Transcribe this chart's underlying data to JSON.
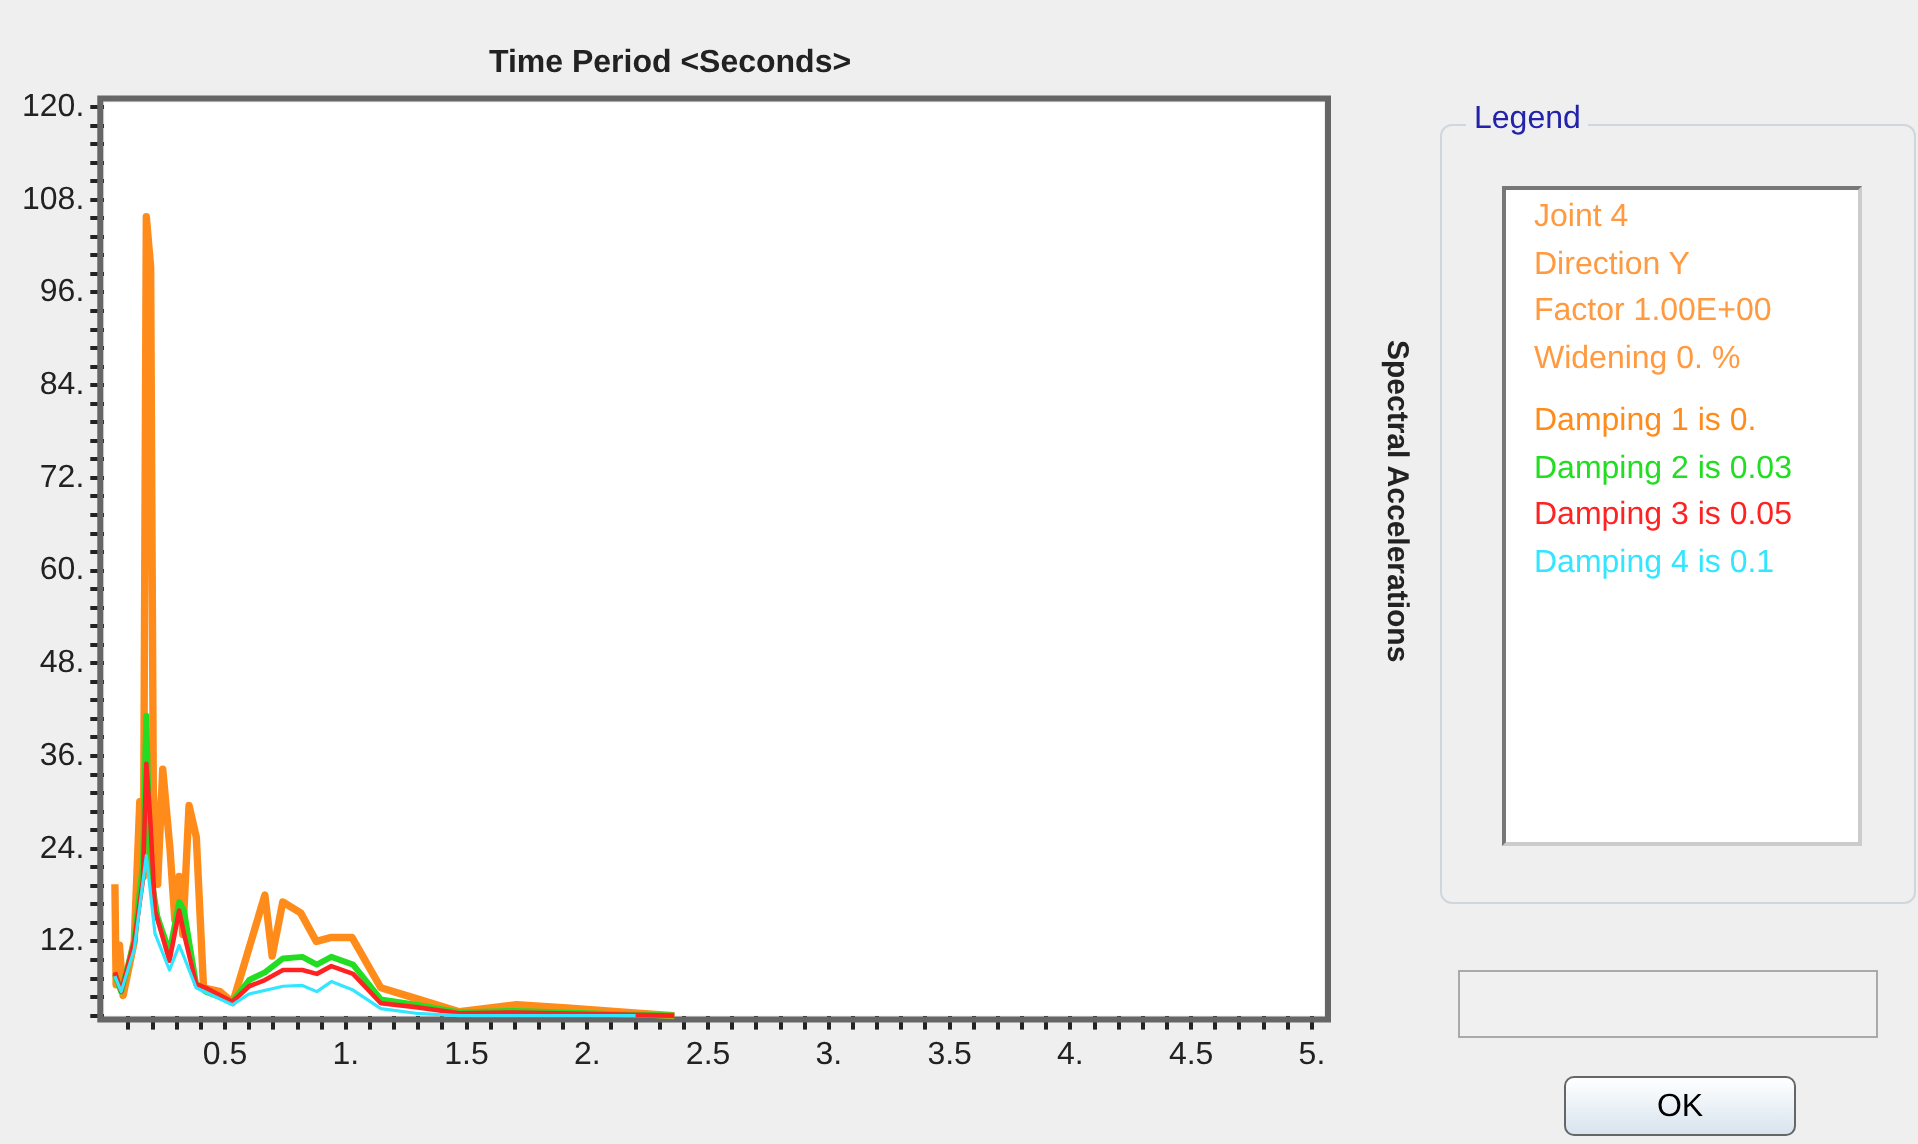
{
  "chart_data": {
    "type": "line",
    "title": "Time Period <Seconds>",
    "ylabel": "Spectral Accelerations",
    "legend_title": "Legend",
    "legend": "right",
    "grid": false,
    "marker": "none",
    "line_style": "solid",
    "annotations": [
      "Joint 4",
      "Direction Y",
      "Factor 1.00E+00",
      "Widening 0. %",
      "OK"
    ],
    "xlim": [
      0,
      5.05
    ],
    "ylim": [
      2.4,
      120.6
    ],
    "xticks": [
      {
        "value": 0.1,
        "label": null
      },
      {
        "value": 0.2,
        "label": null
      },
      {
        "value": 0.3,
        "label": null
      },
      {
        "value": 0.4,
        "label": null
      },
      {
        "value": 0.5,
        "label": "0.5"
      },
      {
        "value": 0.6,
        "label": null
      },
      {
        "value": 0.7,
        "label": null
      },
      {
        "value": 0.8,
        "label": null
      },
      {
        "value": 0.9,
        "label": null
      },
      {
        "value": 1,
        "label": "1."
      },
      {
        "value": 1.1,
        "label": null
      },
      {
        "value": 1.2,
        "label": null
      },
      {
        "value": 1.3,
        "label": null
      },
      {
        "value": 1.4,
        "label": null
      },
      {
        "value": 1.5,
        "label": "1.5"
      },
      {
        "value": 1.6,
        "label": null
      },
      {
        "value": 1.7,
        "label": null
      },
      {
        "value": 1.8,
        "label": null
      },
      {
        "value": 1.9,
        "label": null
      },
      {
        "value": 2,
        "label": "2."
      },
      {
        "value": 2.1,
        "label": null
      },
      {
        "value": 2.2,
        "label": null
      },
      {
        "value": 2.3,
        "label": null
      },
      {
        "value": 2.4,
        "label": null
      },
      {
        "value": 2.5,
        "label": "2.5"
      },
      {
        "value": 2.6,
        "label": null
      },
      {
        "value": 2.7,
        "label": null
      },
      {
        "value": 2.8,
        "label": null
      },
      {
        "value": 2.9,
        "label": null
      },
      {
        "value": 3,
        "label": "3."
      },
      {
        "value": 3.1,
        "label": null
      },
      {
        "value": 3.2,
        "label": null
      },
      {
        "value": 3.3,
        "label": null
      },
      {
        "value": 3.4,
        "label": null
      },
      {
        "value": 3.5,
        "label": "3.5"
      },
      {
        "value": 3.6,
        "label": null
      },
      {
        "value": 3.7,
        "label": null
      },
      {
        "value": 3.8,
        "label": null
      },
      {
        "value": 3.9,
        "label": null
      },
      {
        "value": 4,
        "label": "4."
      },
      {
        "value": 4.1,
        "label": null
      },
      {
        "value": 4.2,
        "label": null
      },
      {
        "value": 4.3,
        "label": null
      },
      {
        "value": 4.4,
        "label": null
      },
      {
        "value": 4.5,
        "label": "4.5"
      },
      {
        "value": 4.6,
        "label": null
      },
      {
        "value": 4.7,
        "label": null
      },
      {
        "value": 4.8,
        "label": null
      },
      {
        "value": 4.9,
        "label": null
      },
      {
        "value": 5,
        "label": "5."
      }
    ],
    "yticks": [
      {
        "value": 2.4,
        "label": null
      },
      {
        "value": 4.8,
        "label": null
      },
      {
        "value": 7.2,
        "label": null
      },
      {
        "value": 9.6,
        "label": null
      },
      {
        "value": 12,
        "label": "12."
      },
      {
        "value": 14.4,
        "label": null
      },
      {
        "value": 16.8,
        "label": null
      },
      {
        "value": 19.2,
        "label": null
      },
      {
        "value": 21.6,
        "label": null
      },
      {
        "value": 24,
        "label": "24."
      },
      {
        "value": 26.4,
        "label": null
      },
      {
        "value": 28.8,
        "label": null
      },
      {
        "value": 31.2,
        "label": null
      },
      {
        "value": 33.6,
        "label": null
      },
      {
        "value": 36,
        "label": "36."
      },
      {
        "value": 38.4,
        "label": null
      },
      {
        "value": 40.8,
        "label": null
      },
      {
        "value": 43.2,
        "label": null
      },
      {
        "value": 45.6,
        "label": null
      },
      {
        "value": 48,
        "label": "48."
      },
      {
        "value": 50.4,
        "label": null
      },
      {
        "value": 52.8,
        "label": null
      },
      {
        "value": 55.2,
        "label": null
      },
      {
        "value": 57.6,
        "label": null
      },
      {
        "value": 60,
        "label": "60."
      },
      {
        "value": 62.4,
        "label": null
      },
      {
        "value": 64.8,
        "label": null
      },
      {
        "value": 67.2,
        "label": null
      },
      {
        "value": 69.6,
        "label": null
      },
      {
        "value": 72,
        "label": "72."
      },
      {
        "value": 74.4,
        "label": null
      },
      {
        "value": 76.8,
        "label": null
      },
      {
        "value": 79.2,
        "label": null
      },
      {
        "value": 81.6,
        "label": null
      },
      {
        "value": 84,
        "label": "84."
      },
      {
        "value": 86.4,
        "label": null
      },
      {
        "value": 88.8,
        "label": null
      },
      {
        "value": 91.2,
        "label": null
      },
      {
        "value": 93.6,
        "label": null
      },
      {
        "value": 96,
        "label": "96."
      },
      {
        "value": 98.4,
        "label": null
      },
      {
        "value": 100.8,
        "label": null
      },
      {
        "value": 103.2,
        "label": null
      },
      {
        "value": 105.6,
        "label": null
      },
      {
        "value": 108,
        "label": "108."
      },
      {
        "value": 110.4,
        "label": null
      },
      {
        "value": 112.8,
        "label": null
      },
      {
        "value": 115.2,
        "label": null
      },
      {
        "value": 117.6,
        "label": null
      },
      {
        "value": 120,
        "label": "120."
      }
    ],
    "series": [
      {
        "name": "Damping 1 is 0.",
        "color": "#ff8c1a",
        "x": [
          0.044,
          0.049,
          0.063,
          0.078,
          0.124,
          0.147,
          0.162,
          0.174,
          0.192,
          0.203,
          0.221,
          0.242,
          0.272,
          0.292,
          0.31,
          0.325,
          0.351,
          0.381,
          0.411,
          0.479,
          0.532,
          0.665,
          0.695,
          0.739,
          0.813,
          0.878,
          0.937,
          1.026,
          1.145,
          1.292,
          1.47,
          1.707,
          1.915,
          2.21,
          2.36
        ],
        "values": [
          19.4,
          6.4,
          11.5,
          5,
          12,
          30.1,
          20.4,
          105.8,
          99.3,
          31.5,
          19.4,
          34.3,
          24,
          14.8,
          20.4,
          12.9,
          29.6,
          25.5,
          6,
          5.5,
          4.1,
          18,
          10.1,
          17.1,
          15.7,
          12,
          12.5,
          12.5,
          6,
          4.6,
          2.9,
          3.8,
          3.4,
          2.7,
          2.4
        ]
      },
      {
        "name": "Damping 2 is 0.03",
        "color": "#22dd22",
        "x": [
          0.044,
          0.07,
          0.124,
          0.16,
          0.174,
          0.19,
          0.22,
          0.27,
          0.31,
          0.33,
          0.38,
          0.42,
          0.53,
          0.6,
          0.665,
          0.74,
          0.82,
          0.88,
          0.94,
          1.03,
          1.145,
          1.29,
          1.47,
          1.7,
          2.2,
          2.36
        ],
        "values": [
          7.8,
          5.5,
          12,
          22,
          41.2,
          21,
          15.2,
          10.6,
          17.1,
          16,
          6.5,
          5.5,
          4.2,
          7,
          8,
          9.8,
          10,
          9,
          10,
          9,
          4.5,
          3.8,
          2.8,
          3,
          2.5,
          2.4
        ]
      },
      {
        "name": "Damping 3 is 0.05",
        "color": "#ff2222",
        "x": [
          0.044,
          0.07,
          0.124,
          0.16,
          0.174,
          0.19,
          0.21,
          0.27,
          0.31,
          0.33,
          0.38,
          0.42,
          0.53,
          0.6,
          0.665,
          0.74,
          0.82,
          0.88,
          0.94,
          1.03,
          1.145,
          1.29,
          1.47,
          1.7,
          2.2,
          2.36
        ],
        "values": [
          8,
          5.5,
          12,
          20,
          35,
          28,
          16,
          9.5,
          16,
          13,
          6.5,
          6,
          4.2,
          6.2,
          7,
          8.3,
          8.3,
          7.8,
          8.8,
          7.8,
          4,
          3.5,
          2.7,
          2.8,
          2.5,
          2.4
        ]
      },
      {
        "name": "Damping 4 is 0.1",
        "color": "#33e6ff",
        "x": [
          0.044,
          0.07,
          0.124,
          0.174,
          0.21,
          0.27,
          0.31,
          0.33,
          0.38,
          0.53,
          0.6,
          0.74,
          0.82,
          0.88,
          0.94,
          1.03,
          1.145,
          1.29,
          1.47,
          2.2
        ],
        "values": [
          7.5,
          5.5,
          11,
          23.1,
          13,
          8.3,
          11.5,
          10,
          6,
          3.8,
          5.2,
          6.2,
          6.3,
          5.5,
          6.8,
          5.7,
          3.3,
          2.7,
          2.4,
          2.4
        ]
      }
    ]
  }
}
